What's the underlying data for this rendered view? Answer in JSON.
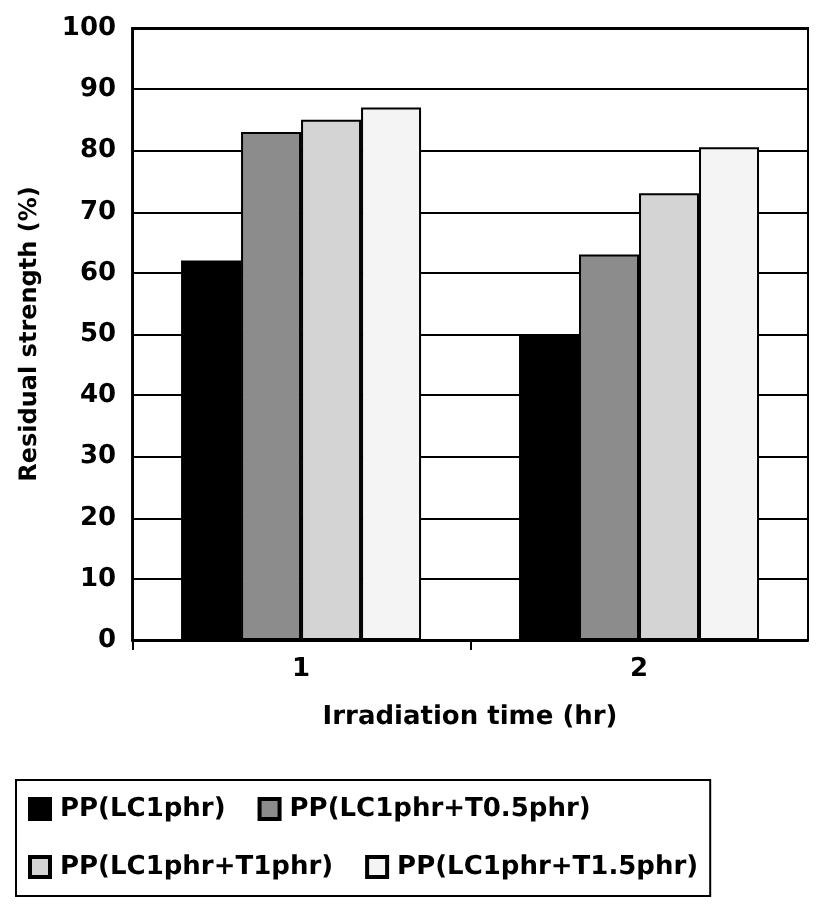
{
  "chart_data": {
    "type": "bar",
    "xlabel": "Irradiation time (hr)",
    "ylabel": "Residual strength (%)",
    "categories": [
      "1",
      "2"
    ],
    "series": [
      {
        "name": "PP(LC1phr)",
        "color": "#000000",
        "values": [
          62,
          50
        ]
      },
      {
        "name": "PP(LC1phr+T0.5phr)",
        "color": "#8c8c8c",
        "values": [
          83,
          63
        ]
      },
      {
        "name": "PP(LC1phr+T1phr)",
        "color": "#d4d4d4",
        "values": [
          85,
          73
        ]
      },
      {
        "name": "PP(LC1phr+T1.5phr)",
        "color": "#f4f4f4",
        "values": [
          87,
          80.5
        ]
      }
    ],
    "ylim": [
      0,
      100
    ],
    "yticks": [
      0,
      10,
      20,
      30,
      40,
      50,
      60,
      70,
      80,
      90,
      100
    ],
    "grid": "y",
    "legend": "bottom"
  }
}
